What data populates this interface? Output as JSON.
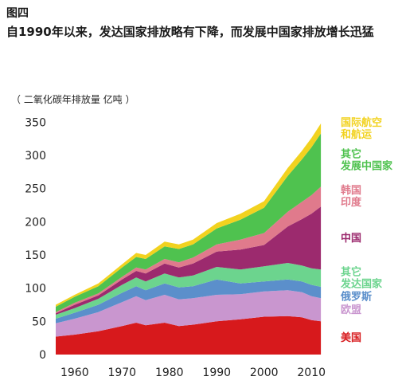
{
  "figure_label": "图四",
  "title": "自1990年以来，发达国家排放略有下降，而发展中国家排放增长迅猛",
  "chart_data": {
    "type": "area",
    "stacked": true,
    "ylabel": "（ 二氧化碳年排放量 亿吨 ）",
    "ylim": [
      0,
      360
    ],
    "yticks": [
      0,
      50,
      100,
      150,
      200,
      250,
      300,
      350
    ],
    "xlim": [
      1956,
      2014
    ],
    "xticks": [
      1960,
      1970,
      1980,
      1990,
      2000,
      2010
    ],
    "grid": false,
    "legend_placement": "right, inline with bands",
    "x": [
      1956,
      1960,
      1965,
      1970,
      1973,
      1975,
      1979,
      1982,
      1985,
      1990,
      1995,
      2000,
      2005,
      2008,
      2010,
      2012
    ],
    "series": [
      {
        "name": "美国",
        "color": "#d7191c",
        "values": [
          27,
          30,
          35,
          43,
          48,
          44,
          48,
          43,
          45,
          50,
          53,
          57,
          58,
          56,
          52,
          50
        ]
      },
      {
        "name": "欧盟",
        "color": "#c996cf",
        "values": [
          20,
          24,
          29,
          36,
          40,
          38,
          42,
          40,
          40,
          40,
          38,
          38,
          39,
          38,
          36,
          35
        ]
      },
      {
        "name": "俄罗斯",
        "color": "#5b8fcb",
        "values": [
          7,
          9,
          11,
          14,
          15,
          15,
          17,
          18,
          18,
          23,
          16,
          15,
          16,
          16,
          17,
          17
        ]
      },
      {
        "name": "其它\n发达国家",
        "color": "#6cd48e",
        "values": [
          6,
          7,
          9,
          12,
          13,
          13,
          15,
          15,
          16,
          19,
          21,
          23,
          25,
          24,
          25,
          26
        ]
      },
      {
        "name": "中国",
        "color": "#9c2a6e",
        "values": [
          2,
          5,
          5,
          8,
          10,
          12,
          15,
          15,
          18,
          23,
          30,
          32,
          55,
          70,
          82,
          95
        ]
      },
      {
        "name": "韩国\n印度",
        "color": "#e07a8c",
        "values": [
          2,
          3,
          3,
          4,
          5,
          6,
          7,
          8,
          9,
          11,
          15,
          18,
          22,
          26,
          28,
          30
        ]
      },
      {
        "name": "其它\n发展中国家",
        "color": "#4fc24f",
        "values": [
          8,
          9,
          11,
          14,
          16,
          16,
          19,
          20,
          20,
          24,
          30,
          38,
          54,
          64,
          72,
          80
        ]
      },
      {
        "name": "国际航空\n和航运",
        "color": "#f2d21f",
        "values": [
          3,
          3,
          4,
          5,
          6,
          6,
          7,
          7,
          7,
          8,
          9,
          10,
          12,
          13,
          14,
          15
        ]
      }
    ]
  }
}
